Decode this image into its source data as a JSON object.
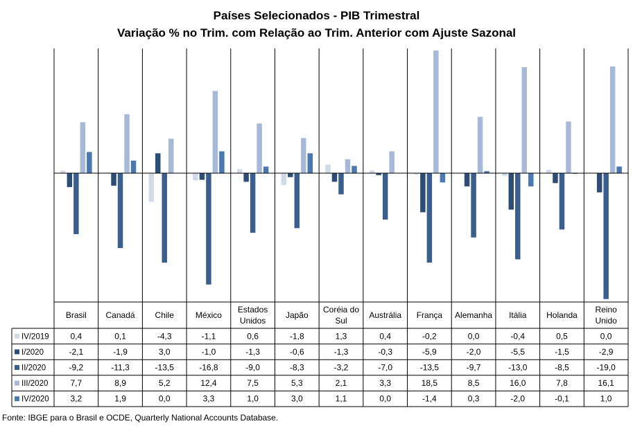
{
  "chart_data": {
    "type": "bar",
    "title": "Países Selecionados - PIB Trimestral",
    "subtitle": "Variação % no Trim. com Relação ao Trim. Anterior com Ajuste Sazonal",
    "categories": [
      [
        "Brasil"
      ],
      [
        "Canadá"
      ],
      [
        "Chile"
      ],
      [
        "México"
      ],
      [
        "Estados",
        "Unidos"
      ],
      [
        "Japão"
      ],
      [
        "Coréia do",
        "Sul"
      ],
      [
        "Austrália"
      ],
      [
        "França"
      ],
      [
        "Alemanha"
      ],
      [
        "Itália"
      ],
      [
        "Holanda"
      ],
      [
        "Reino",
        "Unido"
      ]
    ],
    "series": [
      {
        "name": "IV/2019",
        "color": "#d2dae8",
        "values": [
          0.4,
          0.1,
          -4.3,
          -1.1,
          0.6,
          -1.8,
          1.3,
          0.4,
          -0.2,
          0.0,
          -0.4,
          0.5,
          0.0
        ],
        "labels": [
          "0,4",
          "0,1",
          "-4,3",
          "-1,1",
          "0,6",
          "-1,8",
          "1,3",
          "0,4",
          "-0,2",
          "0,0",
          "-0,4",
          "0,5",
          "0,0"
        ]
      },
      {
        "name": "I/2020",
        "color": "#2c4d75",
        "values": [
          -2.1,
          -1.9,
          3.0,
          -1.0,
          -1.3,
          -0.6,
          -1.3,
          -0.3,
          -5.9,
          -2.0,
          -5.5,
          -1.5,
          -2.9
        ],
        "labels": [
          "-2,1",
          "-1,9",
          "3,0",
          "-1,0",
          "-1,3",
          "-0,6",
          "-1,3",
          "-0,3",
          "-5,9",
          "-2,0",
          "-5,5",
          "-1,5",
          "-2,9"
        ]
      },
      {
        "name": "II/2020",
        "color": "#3a5f8f",
        "values": [
          -9.2,
          -11.3,
          -13.5,
          -16.8,
          -9.0,
          -8.3,
          -3.2,
          -7.0,
          -13.5,
          -9.7,
          -13.0,
          -8.5,
          -19.0
        ],
        "labels": [
          "-9,2",
          "-11,3",
          "-13,5",
          "-16,8",
          "-9,0",
          "-8,3",
          "-3,2",
          "-7,0",
          "-13,5",
          "-9,7",
          "-13,0",
          "-8,5",
          "-19,0"
        ]
      },
      {
        "name": "III/2020",
        "color": "#a6b9d6",
        "values": [
          7.7,
          8.9,
          5.2,
          12.4,
          7.5,
          5.3,
          2.1,
          3.3,
          18.5,
          8.5,
          16.0,
          7.8,
          16.1
        ],
        "labels": [
          "7,7",
          "8,9",
          "5,2",
          "12,4",
          "7,5",
          "5,3",
          "2,1",
          "3,3",
          "18,5",
          "8,5",
          "16,0",
          "7,8",
          "16,1"
        ]
      },
      {
        "name": "IV/2020",
        "color": "#4a78b0",
        "values": [
          3.2,
          1.9,
          0.0,
          3.3,
          1.0,
          3.0,
          1.1,
          0.0,
          -1.4,
          0.3,
          -2.0,
          -0.1,
          1.0
        ],
        "labels": [
          "3,2",
          "1,9",
          "0,0",
          "3,3",
          "1,0",
          "3,0",
          "1,1",
          "0,0",
          "-1,4",
          "0,3",
          "-2,0",
          "-0,1",
          "1,0"
        ]
      }
    ],
    "ylim": [
      -19.5,
      19
    ],
    "grid": false,
    "legend": "table-below"
  },
  "source": "Fonte: IBGE para o Brasil e OCDE, Quarterly National Accounts Database."
}
